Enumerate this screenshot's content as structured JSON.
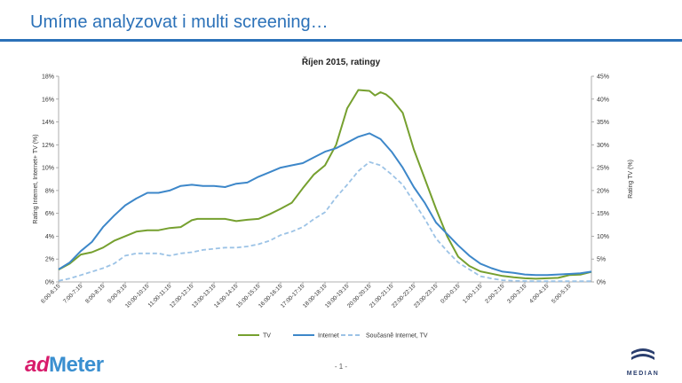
{
  "slide": {
    "title": "Umíme analyzovat i multi screening…",
    "page_number": "- 1 -"
  },
  "logos": {
    "admeter_ad": "ad",
    "admeter_rest": "Meter",
    "median": "MEDIAN"
  },
  "colors": {
    "title_blue": "#2b71b8",
    "tv": "#76a02f",
    "internet": "#3d87c9",
    "both": "#9cc3e6"
  },
  "chart_data": {
    "type": "line",
    "title": "Říjen 2015, ratingy",
    "ylabel_left": "Rating Internet, Internet+ TV (%)",
    "ylabel_right": "Rating TV (%)",
    "left_axis": {
      "min": 0,
      "max": 18,
      "step": 2,
      "suffix": "%"
    },
    "right_axis": {
      "min": 0,
      "max": 45,
      "step": 5,
      "suffix": "%"
    },
    "grid": false,
    "legend_position": "bottom",
    "x_tick_labels": [
      "6:00-6:15",
      "7:00-7:15",
      "8:00-8:15",
      "9:00-9:15",
      "10:00-10:15",
      "11:00-11:15",
      "12:00-12:15",
      "13:00-13:15",
      "14:00-14:15",
      "15:00-15:15",
      "16:00-16:15",
      "17:00-17:15",
      "18:00-18:15",
      "19:00-19:15",
      "20:00-20:15",
      "21:00-21:15",
      "22:00-22:15",
      "23:00-23:15",
      "0:00-0:15",
      "1:00-1:15",
      "2:00-2:15",
      "3:00-3:15",
      "4:00-4:15",
      "5:00-5:15"
    ],
    "x_hours": [
      6,
      7,
      8,
      9,
      10,
      11,
      12,
      13,
      14,
      15,
      16,
      17,
      18,
      19,
      20,
      21,
      22,
      23,
      24,
      25,
      26,
      27,
      28,
      29
    ],
    "x_end": 30,
    "series": [
      {
        "name": "TV",
        "axis": "right",
        "style": "solid",
        "color": "#76a02f",
        "x": [
          6,
          6.5,
          7,
          7.5,
          8,
          8.5,
          9,
          9.5,
          10,
          10.5,
          11,
          11.5,
          12,
          12.25,
          12.5,
          13,
          13.5,
          14,
          14.5,
          15,
          15.5,
          16,
          16.5,
          17,
          17.5,
          18,
          18.5,
          19,
          19.5,
          20,
          20.25,
          20.5,
          20.75,
          21,
          21.5,
          22,
          22.5,
          23,
          23.5,
          24,
          24.5,
          25,
          25.5,
          26,
          26.5,
          27,
          27.5,
          28,
          28.5,
          29,
          29.5,
          30
        ],
        "y": [
          2.7,
          4,
          6,
          6.5,
          7.5,
          9,
          10,
          11,
          11.3,
          11.3,
          11.8,
          12,
          13.5,
          13.8,
          13.8,
          13.8,
          13.8,
          13.3,
          13.6,
          13.8,
          14.8,
          16,
          17.3,
          20.5,
          23.5,
          25.5,
          30,
          38,
          42,
          41.8,
          40.8,
          41.5,
          41,
          40,
          37,
          29,
          22.5,
          16,
          10,
          5.5,
          3.5,
          2.3,
          1.8,
          1.3,
          1,
          0.8,
          0.7,
          0.8,
          0.9,
          1.5,
          1.6,
          2.2
        ]
      },
      {
        "name": "Internet",
        "axis": "left",
        "style": "solid",
        "color": "#3d87c9",
        "x": [
          6,
          6.5,
          7,
          7.5,
          8,
          8.5,
          9,
          9.5,
          10,
          10.5,
          11,
          11.5,
          12,
          12.5,
          13,
          13.5,
          14,
          14.5,
          15,
          15.5,
          16,
          16.5,
          17,
          17.5,
          18,
          18.5,
          19,
          19.5,
          20,
          20.5,
          21,
          21.5,
          22,
          22.5,
          23,
          23.5,
          24,
          24.5,
          25,
          25.5,
          26,
          26.5,
          27,
          27.5,
          28,
          28.5,
          29,
          29.5,
          30
        ],
        "y": [
          1.1,
          1.7,
          2.7,
          3.5,
          4.8,
          5.8,
          6.7,
          7.3,
          7.8,
          7.8,
          8,
          8.4,
          8.5,
          8.4,
          8.4,
          8.3,
          8.6,
          8.7,
          9.2,
          9.6,
          10,
          10.2,
          10.4,
          10.9,
          11.4,
          11.7,
          12.2,
          12.7,
          13,
          12.5,
          11.4,
          10,
          8.3,
          6.9,
          5.2,
          4.2,
          3.2,
          2.3,
          1.6,
          1.2,
          0.9,
          0.8,
          0.65,
          0.6,
          0.6,
          0.65,
          0.7,
          0.75,
          0.9
        ]
      },
      {
        "name": "Současně Internet, TV",
        "axis": "left",
        "style": "dashed",
        "color": "#9cc3e6",
        "x": [
          6,
          6.5,
          7,
          7.5,
          8,
          8.5,
          9,
          9.5,
          10,
          10.5,
          11,
          11.5,
          12,
          12.5,
          13,
          13.5,
          14,
          14.5,
          15,
          15.5,
          16,
          16.5,
          17,
          17.5,
          18,
          18.5,
          19,
          19.5,
          20,
          20.5,
          21,
          21.5,
          22,
          22.5,
          23,
          23.5,
          24,
          24.5,
          25,
          25.5,
          26,
          26.5,
          27,
          27.5,
          28,
          28.5,
          29,
          29.5,
          30
        ],
        "y": [
          0.1,
          0.3,
          0.6,
          0.9,
          1.2,
          1.6,
          2.3,
          2.5,
          2.5,
          2.5,
          2.3,
          2.5,
          2.6,
          2.8,
          2.9,
          3,
          3,
          3.1,
          3.3,
          3.6,
          4.1,
          4.4,
          4.8,
          5.5,
          6.1,
          7.4,
          8.5,
          9.7,
          10.5,
          10.2,
          9.4,
          8.5,
          7,
          5.5,
          3.8,
          2.7,
          1.7,
          1.1,
          0.5,
          0.3,
          0.15,
          0.1,
          0.08,
          0.06,
          0.06,
          0.06,
          0.06,
          0.06,
          0.06
        ]
      }
    ]
  }
}
